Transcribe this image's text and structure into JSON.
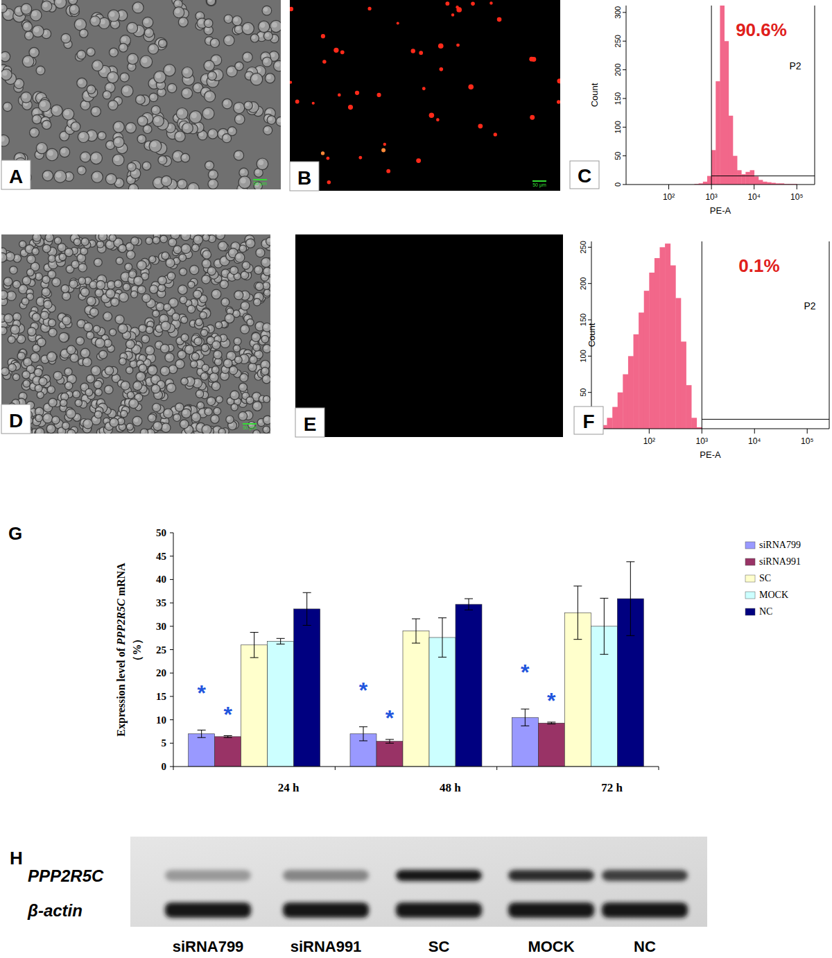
{
  "chart_data": [
    {
      "panel": "C",
      "type": "histogram",
      "x_label": "PE-A",
      "y_label": "Count",
      "log": "x",
      "xlim": [
        10,
        262144
      ],
      "xticks": [
        {
          "value": 100,
          "label": "10²"
        },
        {
          "value": 1000,
          "label": "10³"
        },
        {
          "value": 10000,
          "label": "10⁴"
        },
        {
          "value": 100000,
          "label": "10⁵"
        }
      ],
      "ylim": [
        0,
        312
      ],
      "yticks": [
        0,
        50,
        100,
        150,
        200,
        250,
        300
      ],
      "bins": [
        316.2,
        398.1,
        501.2,
        631,
        794.3,
        1000,
        1258.9,
        1584.9,
        1995.3,
        2511.9,
        3162.3,
        3981.1,
        5011.9,
        6309.6,
        7943.3,
        10000,
        12589,
        15849,
        19953,
        25119,
        31623,
        39811,
        50119,
        63096,
        79433,
        100000,
        125893,
        158489
      ],
      "counts": [
        0,
        1,
        2,
        5,
        15,
        60,
        180,
        320,
        250,
        120,
        50,
        25,
        18,
        22,
        25,
        14,
        8,
        5,
        4,
        3,
        2,
        2,
        1,
        1,
        1,
        0,
        0
      ],
      "color": "#f2678a",
      "gate": {
        "label": "P2",
        "x": [
          1000,
          262144
        ],
        "y": 15
      },
      "annotation": "90.6%"
    },
    {
      "panel": "F",
      "type": "histogram",
      "x_label": "PE-A",
      "y_label": "Count",
      "log": "x",
      "xlim": [
        8,
        262144
      ],
      "xticks": [
        {
          "value": 100,
          "label": "10²"
        },
        {
          "value": 1000,
          "label": "10³"
        },
        {
          "value": 10000,
          "label": "10⁴"
        },
        {
          "value": 100000,
          "label": "10⁵"
        }
      ],
      "ylim": [
        0,
        258
      ],
      "yticks": [
        0,
        50,
        100,
        150,
        200,
        250
      ],
      "bins": [
        10,
        12.6,
        15.8,
        20,
        25.1,
        31.6,
        39.8,
        50.1,
        63.1,
        79.4,
        100,
        125.9,
        158.5,
        199.5,
        251.2,
        316.2,
        398.1,
        501.2,
        631,
        794.3,
        1000
      ],
      "counts": [
        0,
        5,
        15,
        30,
        50,
        75,
        100,
        130,
        160,
        190,
        215,
        235,
        250,
        255,
        225,
        180,
        120,
        60,
        15,
        2
      ],
      "color": "#f2678a",
      "gate": {
        "label": "P2",
        "x": [
          1000,
          262144
        ],
        "y": 13
      },
      "annotation": "0.1%"
    },
    {
      "panel": "G",
      "type": "bar",
      "y_label": "Expression level of PPP2R5C mRNA",
      "y_unit": "（%）",
      "categories": [
        "24 h",
        "48 h",
        "72 h"
      ],
      "series": [
        {
          "name": "siRNA799",
          "color": "#9999ff",
          "values": [
            7.0,
            7.0,
            10.5
          ],
          "errors": [
            0.8,
            1.5,
            1.8
          ],
          "annotations": [
            "*",
            "*",
            "*"
          ]
        },
        {
          "name": "siRNA991",
          "color": "#993366",
          "values": [
            6.4,
            5.4,
            9.3
          ],
          "errors": [
            0.2,
            0.4,
            0.2
          ],
          "annotations": [
            "*",
            "*",
            "*"
          ]
        },
        {
          "name": "SC",
          "color": "#ffffcc",
          "values": [
            26.0,
            29.0,
            32.9
          ],
          "errors": [
            2.7,
            2.6,
            5.7
          ]
        },
        {
          "name": "MOCK",
          "color": "#ccffff",
          "values": [
            26.8,
            27.6,
            30.0
          ],
          "errors": [
            0.6,
            4.2,
            6.0
          ]
        },
        {
          "name": "NC",
          "color": "#000080",
          "values": [
            33.7,
            34.7,
            35.9
          ],
          "errors": [
            3.5,
            1.2,
            7.9
          ]
        }
      ],
      "ylim": [
        0,
        50
      ],
      "yticks": [
        0,
        5,
        10,
        15,
        20,
        25,
        30,
        35,
        40,
        45,
        50
      ],
      "legend": "top-right"
    }
  ],
  "images": [
    {
      "panel": "A",
      "type": "brightfield",
      "cells": 260,
      "scale_bar": "50 μm"
    },
    {
      "panel": "B",
      "type": "fluorescence",
      "cells": 45,
      "scale_bar": "50 μm"
    },
    {
      "panel": "D",
      "type": "brightfield",
      "cells": 750,
      "scale_bar": "50 μm"
    },
    {
      "panel": "E",
      "type": "fluorescence",
      "cells": 0
    }
  ],
  "blot": {
    "panel": "H",
    "lanes": [
      "siRNA799",
      "siRNA991",
      "SC",
      "MOCK",
      "NC"
    ],
    "rows": [
      {
        "label": "PPP2R5C",
        "intensity": [
          0.35,
          0.45,
          1.0,
          0.9,
          0.8
        ]
      },
      {
        "label": "β-actin",
        "intensity": [
          1.0,
          1.0,
          1.0,
          1.0,
          1.0
        ]
      }
    ]
  }
}
